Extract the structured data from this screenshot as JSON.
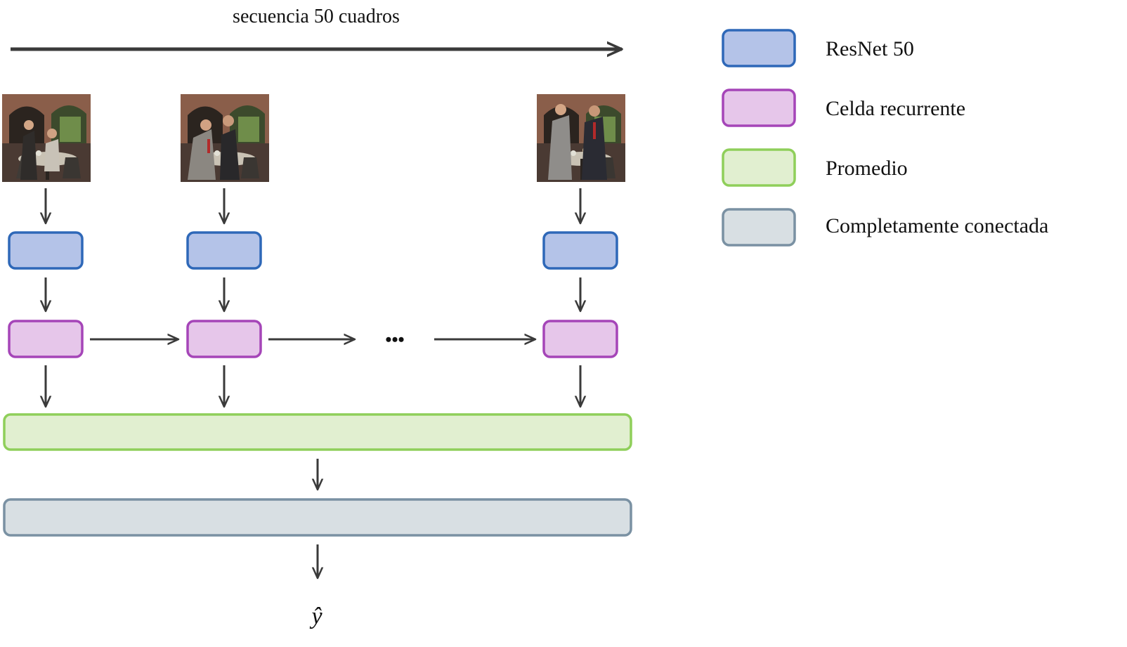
{
  "title": "secuencia 50 cuadros",
  "ellipsis": "•••",
  "output_label": "ŷ",
  "colors": {
    "arrow": "#3a3a3a",
    "resnet_fill": "#b4c3e8",
    "resnet_stroke": "#2e68b8",
    "recurrent_fill": "#e6c6ea",
    "recurrent_stroke": "#a545b8",
    "average_fill": "#e1efd0",
    "average_stroke": "#8fcf5a",
    "dense_fill": "#d8dfe3",
    "dense_stroke": "#7a91a3"
  },
  "frames": [
    {
      "name": "frame-first",
      "description": "video frame thumbnail"
    },
    {
      "name": "frame-second",
      "description": "video frame thumbnail"
    },
    {
      "name": "frame-last",
      "description": "video frame thumbnail"
    }
  ],
  "legend": [
    {
      "key": "resnet",
      "label": "ResNet 50"
    },
    {
      "key": "recurrent",
      "label": "Celda recurrente"
    },
    {
      "key": "average",
      "label": "Promedio"
    },
    {
      "key": "dense",
      "label": "Completamente conectada"
    }
  ]
}
